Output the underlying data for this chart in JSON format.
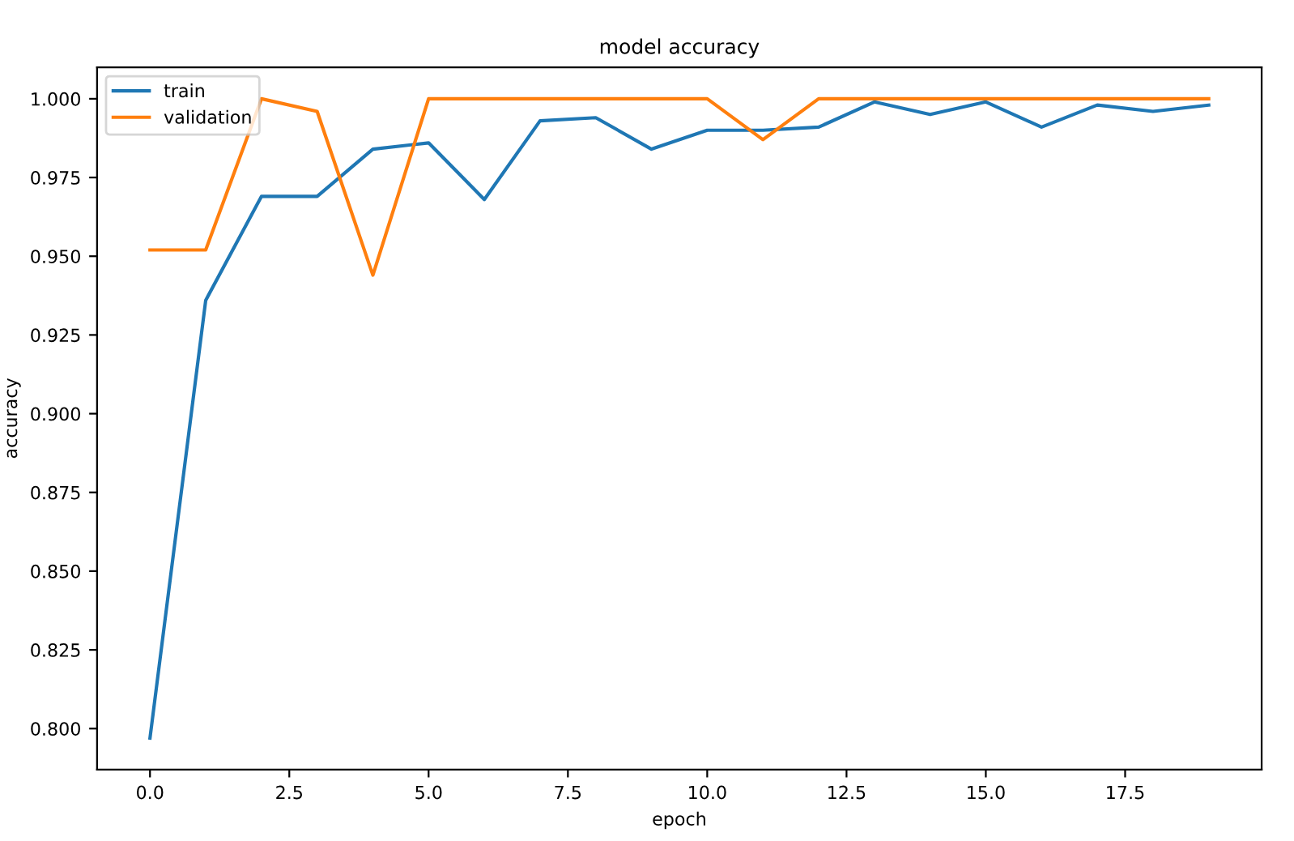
{
  "chart_data": {
    "type": "line",
    "title": "model accuracy",
    "xlabel": "epoch",
    "ylabel": "accuracy",
    "x": [
      0,
      1,
      2,
      3,
      4,
      5,
      6,
      7,
      8,
      9,
      10,
      11,
      12,
      13,
      14,
      15,
      16,
      17,
      18,
      19
    ],
    "series": [
      {
        "name": "train",
        "color": "#1f77b4",
        "values": [
          0.797,
          0.936,
          0.969,
          0.969,
          0.984,
          0.986,
          0.968,
          0.993,
          0.994,
          0.984,
          0.99,
          0.99,
          0.991,
          0.999,
          0.995,
          0.999,
          0.991,
          0.998,
          0.996,
          0.998
        ]
      },
      {
        "name": "validation",
        "color": "#ff7f0e",
        "values": [
          0.952,
          0.952,
          1.0,
          0.996,
          0.944,
          1.0,
          1.0,
          1.0,
          1.0,
          1.0,
          1.0,
          0.987,
          1.0,
          1.0,
          1.0,
          1.0,
          1.0,
          1.0,
          1.0,
          1.0
        ]
      }
    ],
    "xlim": [
      -0.95,
      19.95
    ],
    "ylim": [
      0.787,
      1.01
    ],
    "xticks": [
      {
        "value": 0,
        "label": "0.0"
      },
      {
        "value": 2.5,
        "label": "2.5"
      },
      {
        "value": 5,
        "label": "5.0"
      },
      {
        "value": 7.5,
        "label": "7.5"
      },
      {
        "value": 10,
        "label": "10.0"
      },
      {
        "value": 12.5,
        "label": "12.5"
      },
      {
        "value": 15,
        "label": "15.0"
      },
      {
        "value": 17.5,
        "label": "17.5"
      }
    ],
    "yticks": [
      {
        "value": 0.8,
        "label": "0.800"
      },
      {
        "value": 0.825,
        "label": "0.825"
      },
      {
        "value": 0.85,
        "label": "0.850"
      },
      {
        "value": 0.875,
        "label": "0.875"
      },
      {
        "value": 0.9,
        "label": "0.900"
      },
      {
        "value": 0.925,
        "label": "0.925"
      },
      {
        "value": 0.95,
        "label": "0.950"
      },
      {
        "value": 0.975,
        "label": "0.975"
      },
      {
        "value": 1.0,
        "label": "1.000"
      }
    ],
    "legend": "upper left",
    "grid": false,
    "marker": "none",
    "line_style": "solid"
  }
}
